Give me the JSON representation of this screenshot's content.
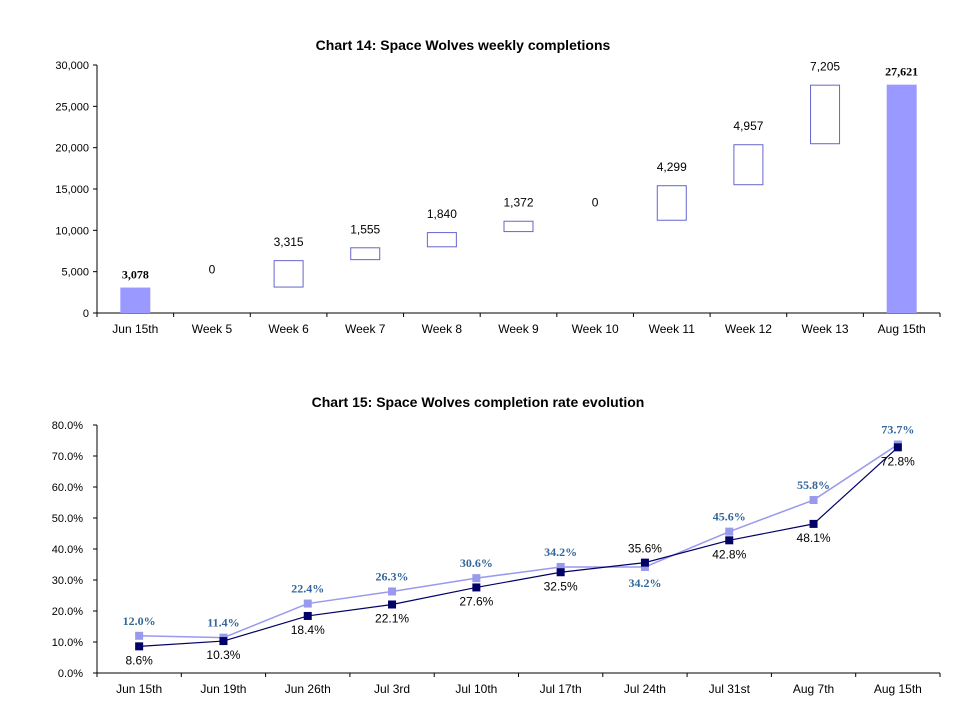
{
  "colors": {
    "total_bar": "#9999ff",
    "float_border": "#6666cc",
    "series_light": "#9999ee",
    "series_dark": "#000066",
    "light_label": "#336699",
    "axis": "#000000"
  },
  "chart_data": [
    {
      "type": "bar",
      "subtype": "waterfall",
      "title": "Chart 14: Space Wolves weekly completions",
      "categories": [
        "Jun 15th",
        "Week 5",
        "Week 6",
        "Week 7",
        "Week 8",
        "Week 9",
        "Week 10",
        "Week 11",
        "Week 12",
        "Week 13",
        "Aug 15th"
      ],
      "values": [
        3078,
        0,
        3315,
        1555,
        1840,
        1372,
        0,
        4299,
        4957,
        7205,
        27621
      ],
      "labels": [
        "3,078",
        "0",
        "3,315",
        "1,555",
        "1,840",
        "1,372",
        "0",
        "4,299",
        "4,957",
        "7,205",
        "27,621"
      ],
      "kinds": [
        "total",
        "delta",
        "delta",
        "delta",
        "delta",
        "delta",
        "delta",
        "delta",
        "delta",
        "delta",
        "total"
      ],
      "ylim": [
        0,
        30000
      ],
      "yticks": [
        "0",
        "5,000",
        "10,000",
        "15,000",
        "20,000",
        "25,000",
        "30,000"
      ],
      "ytick_values": [
        0,
        5000,
        10000,
        15000,
        20000,
        25000,
        30000
      ],
      "xlabel": "",
      "ylabel": "",
      "grid": false
    },
    {
      "type": "line",
      "title": "Chart 15: Space Wolves completion rate evolution",
      "categories": [
        "Jun 15th",
        "Jun 19th",
        "Jun 26th",
        "Jul 3rd",
        "Jul 10th",
        "Jul 17th",
        "Jul 24th",
        "Jul 31st",
        "Aug 7th",
        "Aug 15th"
      ],
      "series": [
        {
          "values": [
            12.0,
            11.4,
            22.4,
            26.3,
            30.6,
            34.2,
            34.2,
            45.6,
            55.8,
            73.7
          ],
          "labels": [
            "12.0%",
            "11.4%",
            "22.4%",
            "26.3%",
            "30.6%",
            "34.2%",
            "34.2%",
            "45.6%",
            "55.8%",
            "73.7%"
          ],
          "color": "#9999ee"
        },
        {
          "values": [
            8.6,
            10.3,
            18.4,
            22.1,
            27.6,
            32.5,
            35.6,
            42.8,
            48.1,
            72.8
          ],
          "labels": [
            "8.6%",
            "10.3%",
            "18.4%",
            "22.1%",
            "27.6%",
            "32.5%",
            "35.6%",
            "42.8%",
            "48.1%",
            "72.8%"
          ],
          "color": "#000066"
        }
      ],
      "ylim": [
        0,
        80
      ],
      "yticks": [
        "0.0%",
        "10.0%",
        "20.0%",
        "30.0%",
        "40.0%",
        "50.0%",
        "60.0%",
        "70.0%",
        "80.0%"
      ],
      "ytick_values": [
        0,
        10,
        20,
        30,
        40,
        50,
        60,
        70,
        80
      ],
      "xlabel": "",
      "ylabel": "",
      "grid": false,
      "legend": "none"
    }
  ]
}
